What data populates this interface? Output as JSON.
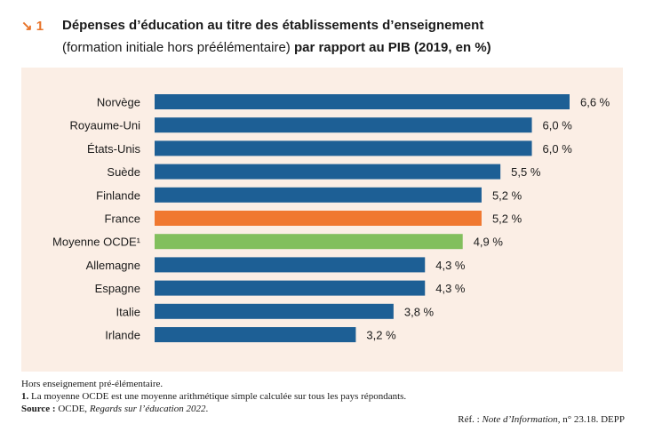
{
  "header": {
    "figure_number": "↘ 1",
    "title": "Dépenses d’éducation au titre des établissements d’enseignement",
    "subtitle_regular": "(formation initiale hors préélémentaire)",
    "subtitle_bold": "par rapport au PIB (2019, en %)"
  },
  "colors": {
    "default_bar": "#1d5f95",
    "france_bar": "#f07830",
    "oecd_bar": "#82bf5d",
    "panel_background": "#fbeee5"
  },
  "chart_data": {
    "type": "bar",
    "orientation": "horizontal",
    "categories": [
      "Norvège",
      "Royaume-Uni",
      "États-Unis",
      "Suède",
      "Finlande",
      "France",
      "Moyenne OCDE¹",
      "Allemagne",
      "Espagne",
      "Italie",
      "Irlande"
    ],
    "values": [
      6.6,
      6.0,
      6.0,
      5.5,
      5.2,
      5.2,
      4.9,
      4.3,
      4.3,
      3.8,
      3.2
    ],
    "value_labels": [
      "6,6 %",
      "6,0 %",
      "6,0 %",
      "5,5 %",
      "5,2 %",
      "5,2 %",
      "4,9 %",
      "4,3 %",
      "4,3 %",
      "3,8 %",
      "3,2 %"
    ],
    "bar_colors": [
      "#1d5f95",
      "#1d5f95",
      "#1d5f95",
      "#1d5f95",
      "#1d5f95",
      "#f07830",
      "#82bf5d",
      "#1d5f95",
      "#1d5f95",
      "#1d5f95",
      "#1d5f95"
    ],
    "xlim": [
      0,
      6.6
    ],
    "grid": false,
    "xlabel": "",
    "ylabel": ""
  },
  "notes": {
    "line1": "Hors enseignement pré-élémentaire.",
    "line2_num": "1.",
    "line2_text": " La moyenne OCDE est une moyenne arithmétique simple calculée sur tous les pays répondants.",
    "source_label": "Source :",
    "source_org": " OCDE, ",
    "source_pub": "Regards sur l’éducation 2022",
    "source_end": "."
  },
  "reference": {
    "prefix": "Réf. : ",
    "publication": "Note d’Information",
    "number": ", n° 23.18. ",
    "org": "DEPP"
  }
}
